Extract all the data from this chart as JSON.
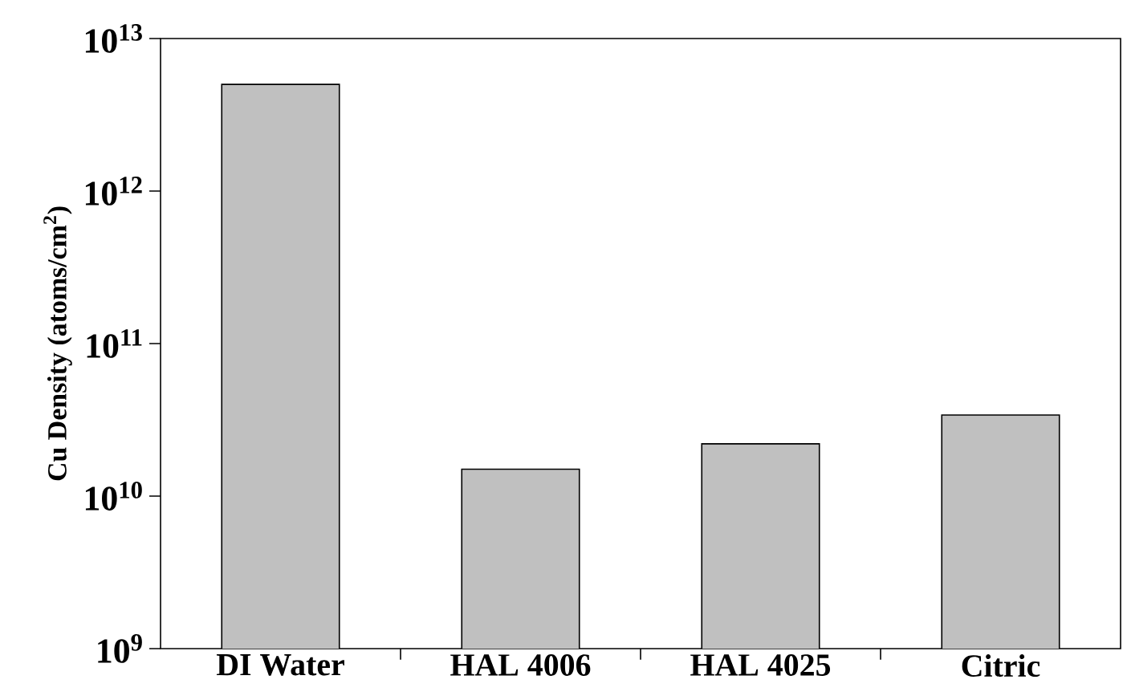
{
  "chart_data": {
    "type": "bar",
    "ylabel": "Cu Density (atoms/cm$^{2}$)",
    "categories": [
      "DI Water",
      "HAL 4006",
      "HAL 4025",
      "Citric"
    ],
    "values": [
      5000000000000.0,
      15000000000.0,
      22000000000.0,
      34000000000.0
    ],
    "color": "#c0c0c0",
    "log": true,
    "ylim": [
      1000000000.0,
      10000000000000.0
    ],
    "yticks": [
      {
        "value": 1000000000.0,
        "label": "10$^{9}$"
      },
      {
        "value": 10000000000.0,
        "label": "10$^{10}$"
      },
      {
        "value": 100000000000.0,
        "label": "10$^{11}$"
      },
      {
        "value": 1000000000000.0,
        "label": "10$^{12}$"
      },
      {
        "value": 10000000000000.0,
        "label": "10$^{13}$"
      }
    ],
    "grid": false
  }
}
